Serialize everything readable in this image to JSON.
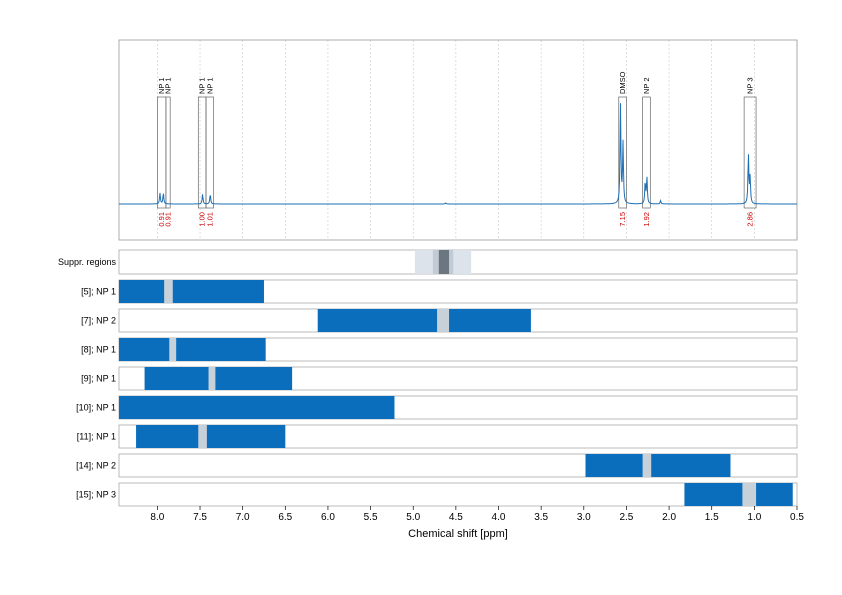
{
  "chart_data": {
    "type": "line",
    "xlabel": "Chemical shift [ppm]",
    "xlim": [
      8.45,
      0.5
    ],
    "x_ticks": [
      "8.0",
      "7.5",
      "7.0",
      "6.5",
      "6.0",
      "5.5",
      "5.0",
      "4.5",
      "4.0",
      "3.5",
      "3.0",
      "2.5",
      "2.0",
      "1.5",
      "1.0",
      "0.5"
    ],
    "x_tick_values": [
      8.0,
      7.5,
      7.0,
      6.5,
      6.0,
      5.5,
      5.0,
      4.5,
      4.0,
      3.5,
      3.0,
      2.5,
      2.0,
      1.5,
      1.0,
      0.5
    ],
    "grid": "vertical dashed",
    "colors": {
      "spectrum": "#1f6fb5",
      "region": "#0a6ebd",
      "gap": "#c8d0d8",
      "suppr_outer": "#dde3ea",
      "suppr_mid": "#c2cbd5",
      "suppr_inner": "#6b7680",
      "integral": "#cc0000"
    },
    "spectrum_peaks": [
      {
        "ppm": 7.97,
        "height": 0.1
      },
      {
        "ppm": 7.93,
        "height": 0.1
      },
      {
        "ppm": 7.47,
        "height": 0.09
      },
      {
        "ppm": 7.38,
        "height": 0.09
      },
      {
        "ppm": 2.57,
        "height": 0.9
      },
      {
        "ppm": 2.54,
        "height": 0.55
      },
      {
        "ppm": 2.28,
        "height": 0.2
      },
      {
        "ppm": 2.26,
        "height": 0.24
      },
      {
        "ppm": 2.1,
        "height": 0.03
      },
      {
        "ppm": 1.07,
        "height": 0.45
      },
      {
        "ppm": 1.05,
        "height": 0.24
      },
      {
        "ppm": 4.62,
        "height": 0.01
      }
    ],
    "annotations": [
      {
        "label": "NP 1",
        "ppm_from": 8.0,
        "ppm_to": 7.9,
        "integral": "0.91"
      },
      {
        "label": "NP 1",
        "ppm_from": 7.9,
        "ppm_to": 7.85,
        "integral": "0.91"
      },
      {
        "label": "NP 1",
        "ppm_from": 7.52,
        "ppm_to": 7.43,
        "integral": "1.00"
      },
      {
        "label": "NP 1",
        "ppm_from": 7.43,
        "ppm_to": 7.34,
        "integral": "1.01"
      },
      {
        "label": "DMSO",
        "ppm_from": 2.59,
        "ppm_to": 2.5,
        "integral": "7.15"
      },
      {
        "label": "NP 2",
        "ppm_from": 2.31,
        "ppm_to": 2.22,
        "integral": "1.92"
      },
      {
        "label": "NP 3",
        "ppm_from": 1.12,
        "ppm_to": 0.98,
        "integral": "2.86"
      }
    ],
    "suppression": {
      "label": "Suppr. regions",
      "outer": [
        4.98,
        4.32
      ],
      "mid": [
        4.77,
        4.53
      ],
      "inner": [
        4.7,
        4.58
      ]
    },
    "rows": [
      {
        "label": "[5]; NP 1",
        "segments": [
          [
            8.45,
            7.92
          ],
          [
            7.82,
            6.75
          ]
        ],
        "gaps": [
          [
            7.92,
            7.82
          ]
        ]
      },
      {
        "label": "[7]; NP 2",
        "segments": [
          [
            6.12,
            4.72
          ],
          [
            4.58,
            3.62
          ]
        ],
        "gaps": [
          [
            4.72,
            4.58
          ]
        ]
      },
      {
        "label": "[8]; NP 1",
        "segments": [
          [
            8.45,
            7.86
          ],
          [
            7.78,
            6.73
          ]
        ],
        "gaps": [
          [
            7.86,
            7.78
          ]
        ]
      },
      {
        "label": "[9]; NP 1",
        "segments": [
          [
            8.15,
            7.4
          ],
          [
            7.32,
            6.42
          ]
        ],
        "gaps": [
          [
            7.4,
            7.32
          ]
        ]
      },
      {
        "label": "[10]; NP 1",
        "segments": [
          [
            8.45,
            5.22
          ]
        ],
        "gaps": []
      },
      {
        "label": "[11]; NP 1",
        "segments": [
          [
            8.25,
            7.52
          ],
          [
            7.42,
            6.5
          ]
        ],
        "gaps": [
          [
            7.52,
            7.42
          ]
        ]
      },
      {
        "label": "[14]; NP 2",
        "segments": [
          [
            2.98,
            2.31
          ],
          [
            2.21,
            1.28
          ]
        ],
        "gaps": [
          [
            2.31,
            2.21
          ]
        ]
      },
      {
        "label": "[15]; NP 3",
        "segments": [
          [
            1.82,
            1.14
          ],
          [
            0.98,
            0.55
          ]
        ],
        "gaps": [
          [
            1.14,
            0.98
          ]
        ]
      }
    ]
  }
}
